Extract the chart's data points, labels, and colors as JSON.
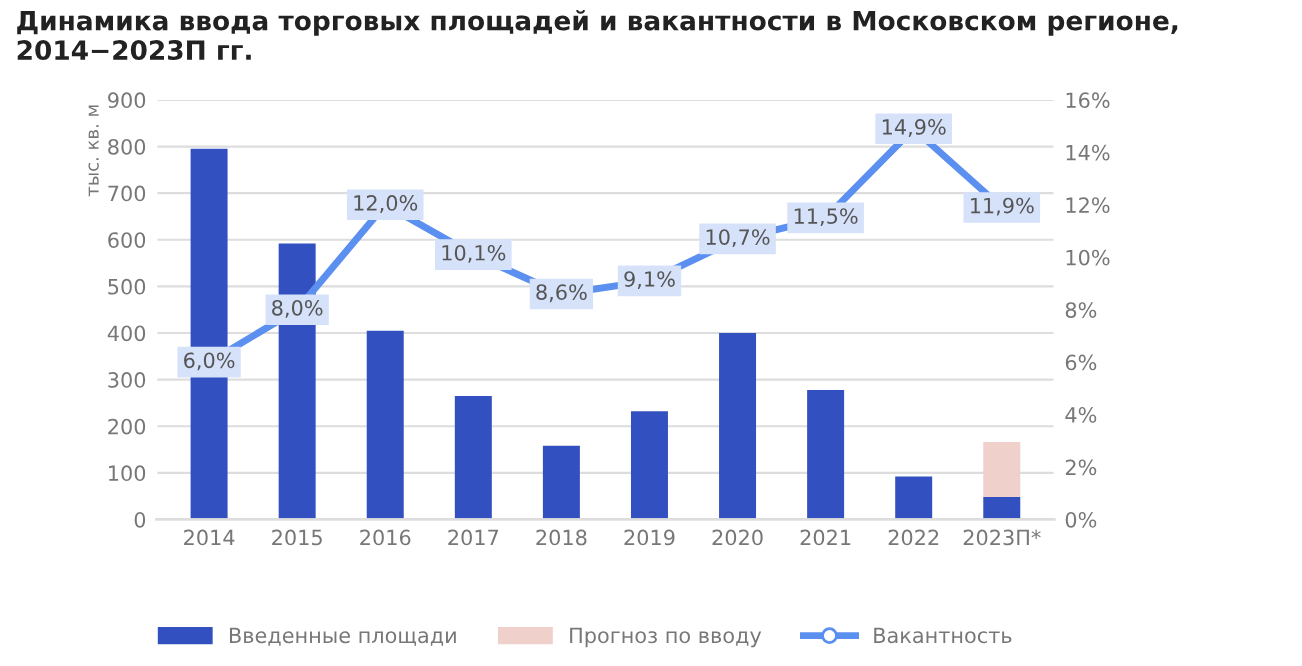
{
  "chart_data": {
    "type": "bar",
    "title": "Динамика ввода торговых площадей и вакантности в Московском регионе, 2014−2023П гг.",
    "categories": [
      "2014",
      "2015",
      "2016",
      "2017",
      "2018",
      "2019",
      "2020",
      "2021",
      "2022",
      "2023П*"
    ],
    "ylabel": "тыс. кв. м",
    "stacked": true,
    "series": [
      {
        "name": "Введенные площади",
        "color": "#3350c0",
        "values": [
          795,
          592,
          405,
          265,
          158,
          232,
          400,
          278,
          92,
          48
        ]
      },
      {
        "name": "Прогноз по вводу",
        "color": "#f0d0ca",
        "values": [
          null,
          null,
          null,
          null,
          null,
          null,
          null,
          null,
          null,
          118
        ]
      },
      {
        "name": "Вакантность",
        "type": "line",
        "axis": "y2",
        "color": "#5b8ff0",
        "marker": "circle",
        "values": [
          6.0,
          8.0,
          12.0,
          10.1,
          8.6,
          9.1,
          10.7,
          11.5,
          14.9,
          11.9
        ],
        "value_labels": [
          "6,0%",
          "8,0%",
          "12,0%",
          "10,1%",
          "8,6%",
          "9,1%",
          "10,7%",
          "11,5%",
          "14,9%",
          "11,9%"
        ]
      }
    ],
    "ylim": [
      0,
      900
    ],
    "yticks": [
      0,
      100,
      200,
      300,
      400,
      500,
      600,
      700,
      800,
      900
    ],
    "y2lim": [
      0,
      16
    ],
    "y2ticks": [
      {
        "value": 0,
        "label": "0%"
      },
      {
        "value": 2,
        "label": "2%"
      },
      {
        "value": 4,
        "label": "4%"
      },
      {
        "value": 6,
        "label": "6%"
      },
      {
        "value": 8,
        "label": "8%"
      },
      {
        "value": 10,
        "label": "10%"
      },
      {
        "value": 12,
        "label": "12%"
      },
      {
        "value": 14,
        "label": "14%"
      },
      {
        "value": 16,
        "label": "16%"
      }
    ],
    "grid": "y",
    "legend": "bottom"
  }
}
